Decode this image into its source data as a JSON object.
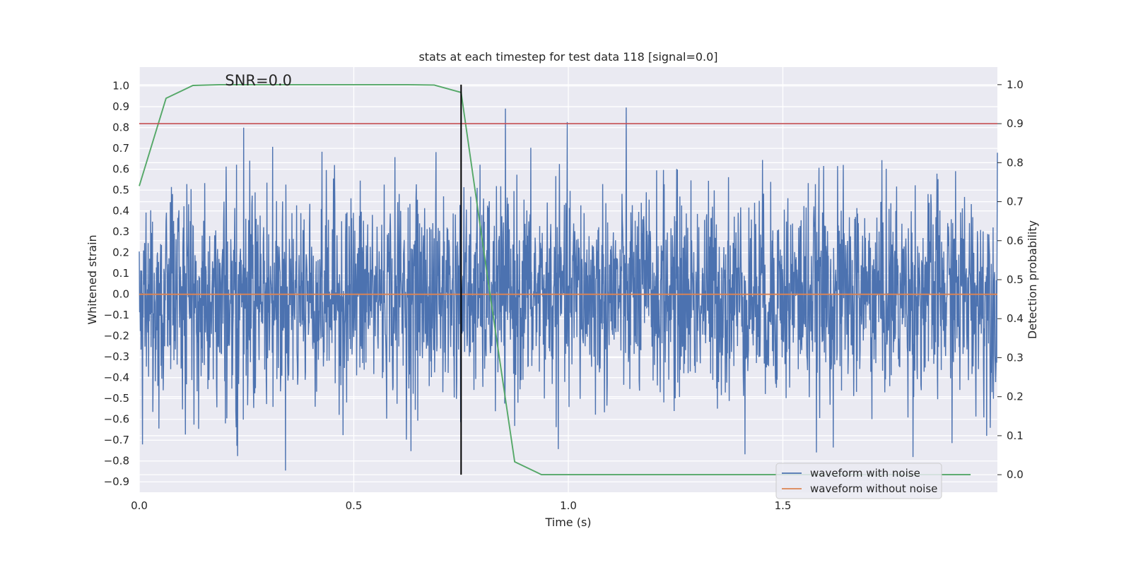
{
  "chart_data": {
    "type": "line",
    "title": "stats at each timestep for test data 118 [signal=0.0]",
    "xlabel": "Time (s)",
    "ylabel_left": "Whitened strain",
    "ylabel_right": "Detection probability",
    "annotation": "SNR=0.0",
    "xlim": [
      0.0,
      2.0
    ],
    "ylim_left": [
      -0.95,
      1.09
    ],
    "ylim_right": [
      -0.045,
      1.045
    ],
    "x_ticks": [
      0.0,
      0.5,
      1.0,
      1.5
    ],
    "x_tick_labels": [
      "0.0",
      "0.5",
      "1.0",
      "1.5"
    ],
    "y_left_ticks": [
      1.0,
      0.9,
      0.8,
      0.7,
      0.6,
      0.5,
      0.4,
      0.3,
      0.2,
      0.1,
      0.0,
      -0.1,
      -0.2,
      -0.3,
      -0.4,
      -0.5,
      -0.6,
      -0.7,
      -0.8,
      -0.9
    ],
    "y_left_tick_labels": [
      "1.0",
      "0.9",
      "0.8",
      "0.7",
      "0.6",
      "0.5",
      "0.4",
      "0.3",
      "0.2",
      "0.1",
      "0.0",
      "−0.1",
      "−0.2",
      "−0.3",
      "−0.4",
      "−0.5",
      "−0.6",
      "−0.7",
      "−0.8",
      "−0.9"
    ],
    "y_right_ticks": [
      1.0,
      0.9,
      0.8,
      0.7,
      0.6,
      0.5,
      0.4,
      0.3,
      0.2,
      0.1,
      0.0
    ],
    "y_right_tick_labels": [
      "1.0",
      "0.9",
      "0.8",
      "0.7",
      "0.6",
      "0.5",
      "0.4",
      "0.3",
      "0.2",
      "0.1",
      "0.0"
    ],
    "grid": true,
    "legend_position": "lower-right",
    "colors": {
      "background": "#eaeaf2",
      "grid": "#ffffff",
      "noise": "#4c72b0",
      "clean": "#dd8452",
      "probability": "#55a868",
      "threshold": "#c44e52",
      "marker": "#000000"
    },
    "series": [
      {
        "name": "waveform with noise",
        "axis": "left",
        "style": "noise",
        "x_range": [
          0.0,
          2.0
        ],
        "amplitude_std": 0.25,
        "max": 1.0,
        "min": -0.86
      },
      {
        "name": "waveform without noise",
        "axis": "left",
        "style": "flat",
        "x": [
          0.0,
          2.0
        ],
        "y": [
          0.0,
          0.0
        ]
      },
      {
        "axis": "right",
        "style": "probability",
        "x": [
          0.0,
          0.0625,
          0.125,
          0.1875,
          0.25,
          0.3125,
          0.375,
          0.4375,
          0.5,
          0.5625,
          0.625,
          0.6875,
          0.75,
          0.8125,
          0.875,
          0.9375,
          1.0,
          1.0625,
          1.125,
          1.1875,
          1.25,
          1.3125,
          1.375,
          1.4375,
          1.5,
          1.5625,
          1.625,
          1.6875,
          1.75,
          1.8125,
          1.875,
          1.9375
        ],
        "y": [
          0.74,
          0.965,
          0.998,
          1.0,
          1.0,
          1.0,
          1.0,
          1.0,
          1.0,
          1.0,
          1.0,
          0.999,
          0.98,
          0.5,
          0.033,
          0.0,
          0.0,
          0.0,
          0.0,
          0.0,
          0.0,
          0.0,
          0.0,
          0.0,
          0.0,
          0.0,
          0.0,
          0.0,
          0.0,
          0.0,
          0.0,
          0.0
        ]
      },
      {
        "axis": "right",
        "style": "threshold",
        "x": [
          0.0,
          2.0
        ],
        "y": [
          0.9,
          0.9
        ]
      },
      {
        "axis": "right",
        "style": "marker",
        "x": [
          0.75,
          0.75
        ],
        "y": [
          0.0,
          1.0
        ]
      }
    ]
  }
}
